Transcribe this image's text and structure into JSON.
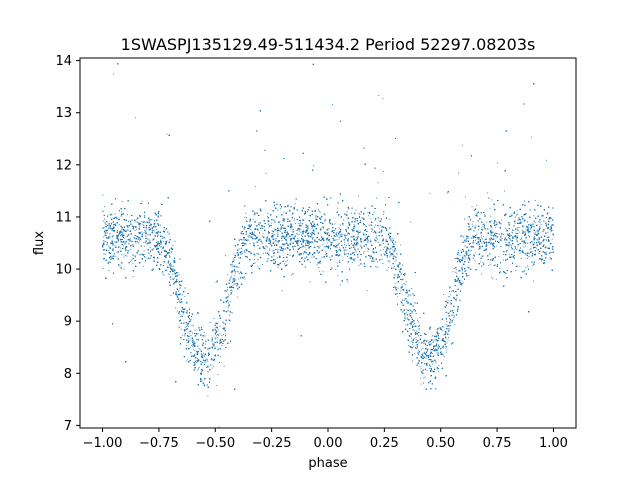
{
  "chart_data": {
    "type": "scatter",
    "title": "1SWASPJ135129.49-511434.2 Period 52297.08203s",
    "xlabel": "phase",
    "ylabel": "flux",
    "xlim": [
      -1.1,
      1.1
    ],
    "ylim": [
      6.95,
      14.05
    ],
    "xticks": [
      -1.0,
      -0.75,
      -0.5,
      -0.25,
      0.0,
      0.25,
      0.5,
      0.75,
      1.0
    ],
    "xtick_labels": [
      "−1.00",
      "−0.75",
      "−0.50",
      "−0.25",
      "0.00",
      "0.25",
      "0.50",
      "0.75",
      "1.00"
    ],
    "yticks": [
      7,
      8,
      9,
      10,
      11,
      12,
      13,
      14
    ],
    "ytick_labels": [
      "7",
      "8",
      "9",
      "10",
      "11",
      "12",
      "13",
      "14"
    ],
    "grid": false,
    "color": "#1f77b4",
    "model": {
      "baseline_flux": 10.6,
      "scatter_sigma": 0.3,
      "eclipse_centers": [
        -0.55,
        0.45
      ],
      "eclipse_min_flux": 8.3,
      "eclipse_half_width": 0.2,
      "points_per_unit_phase": 9000
    }
  }
}
